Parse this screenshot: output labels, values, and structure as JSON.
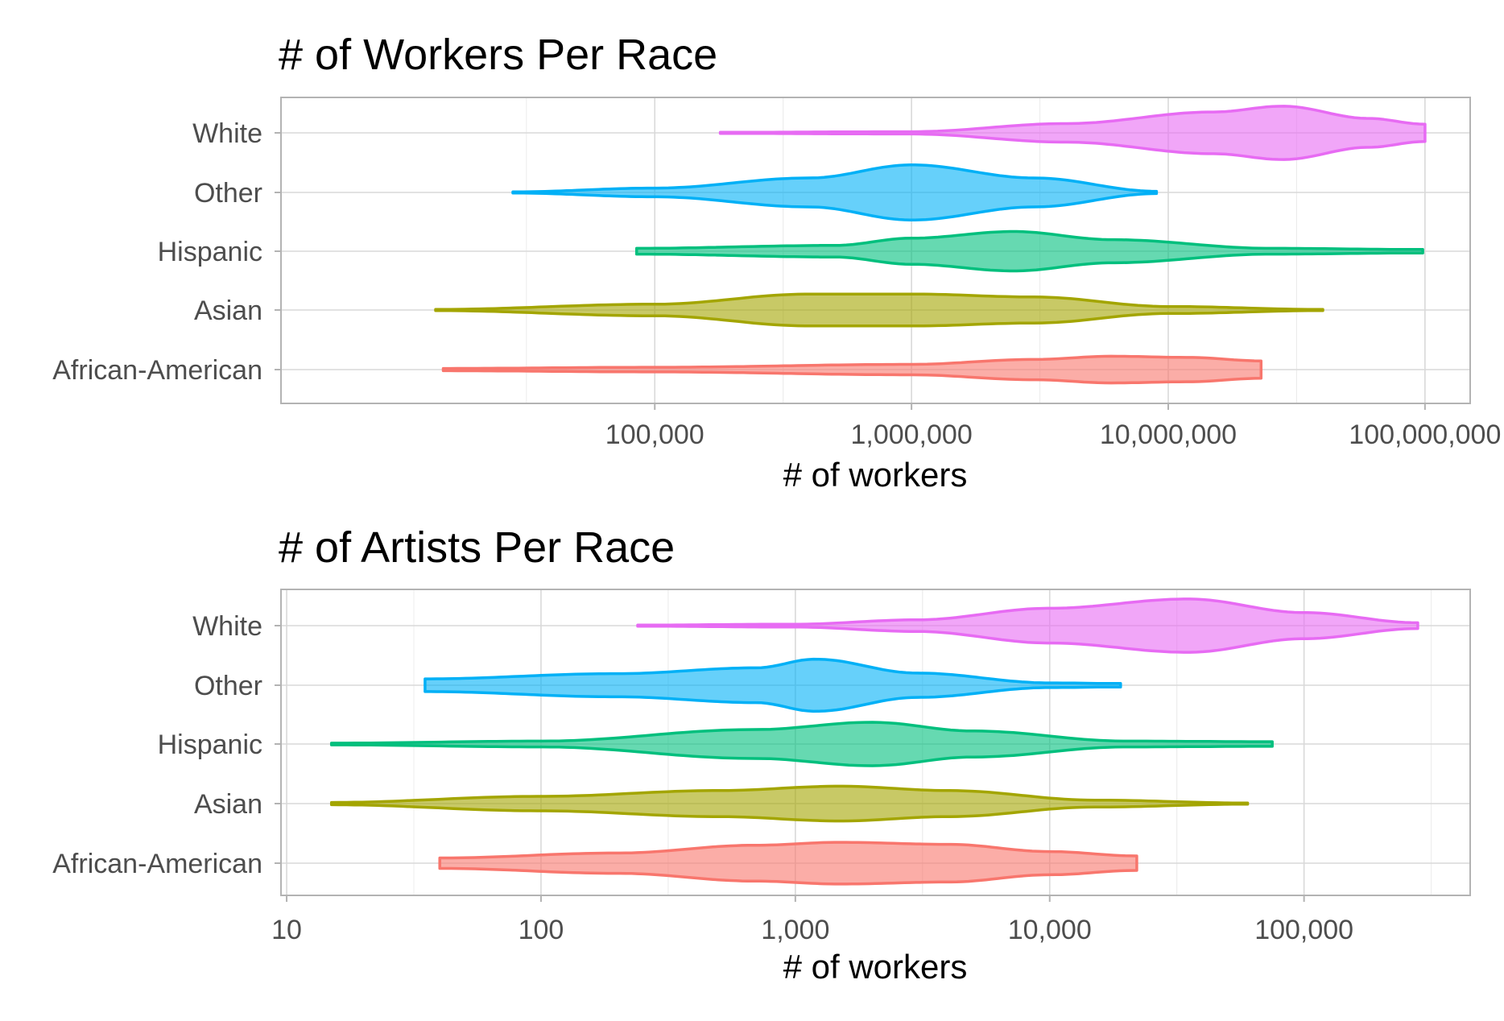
{
  "chart_data": [
    {
      "type": "violin",
      "title": "# of Workers Per Race",
      "xlabel": "# of workers",
      "ylabel": "",
      "x_scale": "log10",
      "xlim": [
        3500,
        150000000
      ],
      "x_ticks": [
        100000,
        1000000,
        10000000,
        100000000
      ],
      "x_tick_labels": [
        "100,000",
        "1,000,000",
        "10,000,000",
        "100,000,000"
      ],
      "grid": true,
      "categories": [
        "African-American",
        "Asian",
        "Hispanic",
        "Other",
        "White"
      ],
      "series": [
        {
          "category": "African-American",
          "color": "#F8766D",
          "range": [
            15000,
            23000000
          ],
          "profile": [
            [
              15000,
              0.04
            ],
            [
              100000,
              0.08
            ],
            [
              1000000,
              0.18
            ],
            [
              3000000,
              0.35
            ],
            [
              6000000,
              0.46
            ],
            [
              12000000,
              0.42
            ],
            [
              23000000,
              0.3
            ]
          ]
        },
        {
          "category": "Asian",
          "color": "#A3A500",
          "range": [
            14000,
            40000000
          ],
          "profile": [
            [
              14000,
              0.02
            ],
            [
              100000,
              0.2
            ],
            [
              400000,
              0.55
            ],
            [
              1000000,
              0.55
            ],
            [
              3000000,
              0.45
            ],
            [
              10000000,
              0.12
            ],
            [
              40000000,
              0.02
            ]
          ]
        },
        {
          "category": "Hispanic",
          "color": "#00BF7D",
          "range": [
            85000,
            98000000
          ],
          "profile": [
            [
              85000,
              0.1
            ],
            [
              500000,
              0.2
            ],
            [
              1000000,
              0.45
            ],
            [
              2500000,
              0.68
            ],
            [
              6000000,
              0.4
            ],
            [
              25000000,
              0.1
            ],
            [
              98000000,
              0.06
            ]
          ]
        },
        {
          "category": "Other",
          "color": "#00B0F6",
          "range": [
            28000,
            9000000
          ],
          "profile": [
            [
              28000,
              0.02
            ],
            [
              100000,
              0.15
            ],
            [
              400000,
              0.5
            ],
            [
              1000000,
              0.95
            ],
            [
              3000000,
              0.5
            ],
            [
              9000000,
              0.04
            ]
          ]
        },
        {
          "category": "White",
          "color": "#E76BF3",
          "range": [
            180000,
            100000000
          ],
          "profile": [
            [
              180000,
              0.02
            ],
            [
              1000000,
              0.04
            ],
            [
              4000000,
              0.32
            ],
            [
              15000000,
              0.72
            ],
            [
              28000000,
              0.92
            ],
            [
              60000000,
              0.5
            ],
            [
              100000000,
              0.3
            ]
          ]
        }
      ]
    },
    {
      "type": "violin",
      "title": "# of Artists Per Race",
      "xlabel": "# of workers",
      "ylabel": "",
      "x_scale": "log10",
      "xlim": [
        9.5,
        450000
      ],
      "x_ticks": [
        10,
        100,
        1000,
        10000,
        100000
      ],
      "x_tick_labels": [
        "10",
        "100",
        "1,000",
        "10,000",
        "100,000"
      ],
      "grid": true,
      "categories": [
        "African-American",
        "Asian",
        "Hispanic",
        "Other",
        "White"
      ],
      "series": [
        {
          "category": "African-American",
          "color": "#F8766D",
          "range": [
            40,
            22000
          ],
          "profile": [
            [
              40,
              0.18
            ],
            [
              200,
              0.35
            ],
            [
              700,
              0.62
            ],
            [
              1500,
              0.72
            ],
            [
              4000,
              0.65
            ],
            [
              10000,
              0.4
            ],
            [
              22000,
              0.25
            ]
          ]
        },
        {
          "category": "Asian",
          "color": "#A3A500",
          "range": [
            15,
            60000
          ],
          "profile": [
            [
              15,
              0.04
            ],
            [
              100,
              0.25
            ],
            [
              500,
              0.45
            ],
            [
              1500,
              0.6
            ],
            [
              4000,
              0.45
            ],
            [
              15000,
              0.12
            ],
            [
              60000,
              0.02
            ]
          ]
        },
        {
          "category": "Hispanic",
          "color": "#00BF7D",
          "range": [
            15,
            75000
          ],
          "profile": [
            [
              15,
              0.03
            ],
            [
              100,
              0.1
            ],
            [
              700,
              0.5
            ],
            [
              2000,
              0.75
            ],
            [
              5000,
              0.45
            ],
            [
              20000,
              0.1
            ],
            [
              75000,
              0.08
            ]
          ]
        },
        {
          "category": "Other",
          "color": "#00B0F6",
          "range": [
            35,
            19000
          ],
          "profile": [
            [
              35,
              0.22
            ],
            [
              200,
              0.4
            ],
            [
              700,
              0.6
            ],
            [
              1200,
              0.9
            ],
            [
              3000,
              0.42
            ],
            [
              10000,
              0.08
            ],
            [
              19000,
              0.06
            ]
          ]
        },
        {
          "category": "White",
          "color": "#E76BF3",
          "range": [
            240,
            280000
          ],
          "profile": [
            [
              240,
              0.02
            ],
            [
              1000,
              0.05
            ],
            [
              3000,
              0.2
            ],
            [
              10000,
              0.6
            ],
            [
              35000,
              0.92
            ],
            [
              100000,
              0.45
            ],
            [
              280000,
              0.1
            ]
          ]
        }
      ]
    }
  ]
}
